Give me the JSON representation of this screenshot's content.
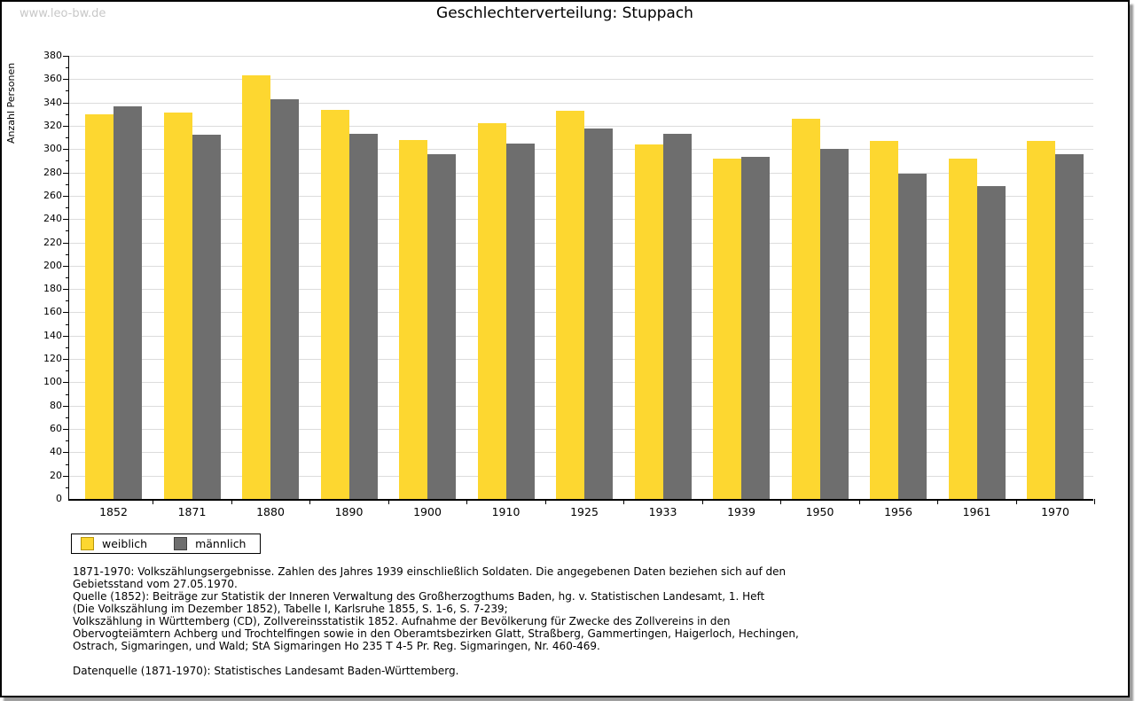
{
  "page": {
    "watermark": "www.leo-bw.de"
  },
  "chart_data": {
    "type": "bar",
    "title": "Geschlechterverteilung: Stuppach",
    "xlabel": "",
    "ylabel": "Anzahl Personen",
    "ylim": [
      0,
      380
    ],
    "ytick_step": 20,
    "grid": true,
    "legend_position": "bottom-left",
    "categories": [
      "1852",
      "1871",
      "1880",
      "1890",
      "1900",
      "1910",
      "1925",
      "1933",
      "1939",
      "1950",
      "1956",
      "1961",
      "1970"
    ],
    "series": [
      {
        "name": "weiblich",
        "color": "#FDD730",
        "border_color": "#B8960B",
        "values": [
          330,
          331,
          363,
          334,
          308,
          322,
          333,
          304,
          292,
          326,
          307,
          292,
          307
        ]
      },
      {
        "name": "männlich",
        "color": "#6E6E6E",
        "border_color": "#3F3F3F",
        "values": [
          337,
          312,
          343,
          313,
          296,
          305,
          318,
          313,
          293,
          300,
          279,
          268,
          296
        ]
      }
    ],
    "gridline_color": "#dcdcdc"
  },
  "footer": {
    "lines": [
      "1871-1970: Volkszählungsergebnisse. Zahlen des Jahres 1939 einschließlich Soldaten. Die angegebenen Daten beziehen sich auf den",
      "Gebietsstand vom 27.05.1970.",
      "Quelle (1852): Beiträge zur Statistik der Inneren Verwaltung des Großherzogthums Baden, hg. v. Statistischen Landesamt, 1. Heft",
      "(Die Volkszählung im Dezember 1852), Tabelle I, Karlsruhe 1855, S. 1-6, S. 7-239;",
      "Volkszählung in Württemberg (CD), Zollvereinsstatistik 1852. Aufnahme der Bevölkerung für Zwecke des Zollvereins in den",
      "Obervogteiämtern Achberg und Trochtelfingen sowie in den Oberamtsbezirken Glatt, Straßberg, Gammertingen, Haigerloch, Hechingen,",
      "Ostrach, Sigmaringen, und Wald; StA Sigmaringen Ho 235 T 4-5 Pr. Reg. Sigmaringen, Nr. 460-469."
    ],
    "source": "Datenquelle (1871-1970): Statistisches Landesamt Baden-Württemberg."
  }
}
